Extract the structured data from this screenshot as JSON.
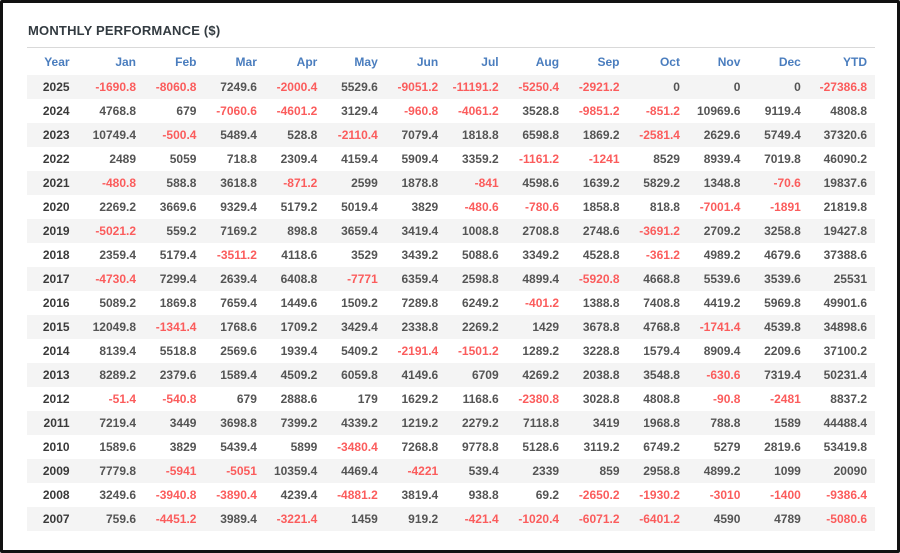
{
  "title": "MONTHLY PERFORMANCE ($)",
  "colors": {
    "header_blue": "#4a7dbe",
    "negative_red": "#fb5c5c",
    "positive_gray": "#545454",
    "year_dark": "#3a3a3a",
    "row_stripe": "#f4f4f4",
    "frame_border": "#111111"
  },
  "chart_data": {
    "type": "table",
    "title": "MONTHLY PERFORMANCE ($)",
    "columns": [
      "Year",
      "Jan",
      "Feb",
      "Mar",
      "Apr",
      "May",
      "Jun",
      "Jul",
      "Aug",
      "Sep",
      "Oct",
      "Nov",
      "Dec",
      "YTD"
    ],
    "rows": [
      {
        "year": "2025",
        "values": [
          "-1690.8",
          "-8060.8",
          "7249.6",
          "-2000.4",
          "5529.6",
          "-9051.2",
          "-11191.2",
          "-5250.4",
          "-2921.2",
          "0",
          "0",
          "0",
          "-27386.8"
        ]
      },
      {
        "year": "2024",
        "values": [
          "4768.8",
          "679",
          "-7060.6",
          "-4601.2",
          "3129.4",
          "-960.8",
          "-4061.2",
          "3528.8",
          "-9851.2",
          "-851.2",
          "10969.6",
          "9119.4",
          "4808.8"
        ]
      },
      {
        "year": "2023",
        "values": [
          "10749.4",
          "-500.4",
          "5489.4",
          "528.8",
          "-2110.4",
          "7079.4",
          "1818.8",
          "6598.8",
          "1869.2",
          "-2581.4",
          "2629.6",
          "5749.4",
          "37320.6"
        ]
      },
      {
        "year": "2022",
        "values": [
          "2489",
          "5059",
          "718.8",
          "2309.4",
          "4159.4",
          "5909.4",
          "3359.2",
          "-1161.2",
          "-1241",
          "8529",
          "8939.4",
          "7019.8",
          "46090.2"
        ]
      },
      {
        "year": "2021",
        "values": [
          "-480.8",
          "588.8",
          "3618.8",
          "-871.2",
          "2599",
          "1878.8",
          "-841",
          "4598.6",
          "1639.2",
          "5829.2",
          "1348.8",
          "-70.6",
          "19837.6"
        ]
      },
      {
        "year": "2020",
        "values": [
          "2269.2",
          "3669.6",
          "9329.4",
          "5179.2",
          "5019.4",
          "3829",
          "-480.6",
          "-780.6",
          "1858.8",
          "818.8",
          "-7001.4",
          "-1891",
          "21819.8"
        ]
      },
      {
        "year": "2019",
        "values": [
          "-5021.2",
          "559.2",
          "7169.2",
          "898.8",
          "3659.4",
          "3419.4",
          "1008.8",
          "2708.8",
          "2748.6",
          "-3691.2",
          "2709.2",
          "3258.8",
          "19427.8"
        ]
      },
      {
        "year": "2018",
        "values": [
          "2359.4",
          "5179.4",
          "-3511.2",
          "4118.6",
          "3529",
          "3439.2",
          "5088.6",
          "3349.2",
          "4528.8",
          "-361.2",
          "4989.2",
          "4679.6",
          "37388.6"
        ]
      },
      {
        "year": "2017",
        "values": [
          "-4730.4",
          "7299.4",
          "2639.4",
          "6408.8",
          "-7771",
          "6359.4",
          "2598.8",
          "4899.4",
          "-5920.8",
          "4668.8",
          "5539.6",
          "3539.6",
          "25531"
        ]
      },
      {
        "year": "2016",
        "values": [
          "5089.2",
          "1869.8",
          "7659.4",
          "1449.6",
          "1509.2",
          "7289.8",
          "6249.2",
          "-401.2",
          "1388.8",
          "7408.8",
          "4419.2",
          "5969.8",
          "49901.6"
        ]
      },
      {
        "year": "2015",
        "values": [
          "12049.8",
          "-1341.4",
          "1768.6",
          "1709.2",
          "3429.4",
          "2338.8",
          "2269.2",
          "1429",
          "3678.8",
          "4768.8",
          "-1741.4",
          "4539.8",
          "34898.6"
        ]
      },
      {
        "year": "2014",
        "values": [
          "8139.4",
          "5518.8",
          "2569.6",
          "1939.4",
          "5409.2",
          "-2191.4",
          "-1501.2",
          "1289.2",
          "3228.8",
          "1579.4",
          "8909.4",
          "2209.6",
          "37100.2"
        ]
      },
      {
        "year": "2013",
        "values": [
          "8289.2",
          "2379.6",
          "1589.4",
          "4509.2",
          "6059.8",
          "4149.6",
          "6709",
          "4269.2",
          "2038.8",
          "3548.8",
          "-630.6",
          "7319.4",
          "50231.4"
        ]
      },
      {
        "year": "2012",
        "values": [
          "-51.4",
          "-540.8",
          "679",
          "2888.6",
          "179",
          "1629.2",
          "1168.6",
          "-2380.8",
          "3028.8",
          "4808.8",
          "-90.8",
          "-2481",
          "8837.2"
        ]
      },
      {
        "year": "2011",
        "values": [
          "7219.4",
          "3449",
          "3698.8",
          "7399.2",
          "4339.2",
          "1219.2",
          "2279.2",
          "7118.8",
          "3419",
          "1968.8",
          "788.8",
          "1589",
          "44488.4"
        ]
      },
      {
        "year": "2010",
        "values": [
          "1589.6",
          "3829",
          "5439.4",
          "5899",
          "-3480.4",
          "7268.8",
          "9778.8",
          "5128.6",
          "3119.2",
          "6749.2",
          "5279",
          "2819.6",
          "53419.8"
        ]
      },
      {
        "year": "2009",
        "values": [
          "7779.8",
          "-5941",
          "-5051",
          "10359.4",
          "4469.4",
          "-4221",
          "539.4",
          "2339",
          "859",
          "2958.8",
          "4899.2",
          "1099",
          "20090"
        ]
      },
      {
        "year": "2008",
        "values": [
          "3249.6",
          "-3940.8",
          "-3890.4",
          "4239.4",
          "-4881.2",
          "3819.4",
          "938.8",
          "69.2",
          "-2650.2",
          "-1930.2",
          "-3010",
          "-1400",
          "-9386.4"
        ]
      },
      {
        "year": "2007",
        "values": [
          "759.6",
          "-4451.2",
          "3989.4",
          "-3221.4",
          "1459",
          "919.2",
          "-421.4",
          "-1020.4",
          "-6071.2",
          "-6401.2",
          "4590",
          "4789",
          "-5080.6"
        ]
      }
    ]
  }
}
